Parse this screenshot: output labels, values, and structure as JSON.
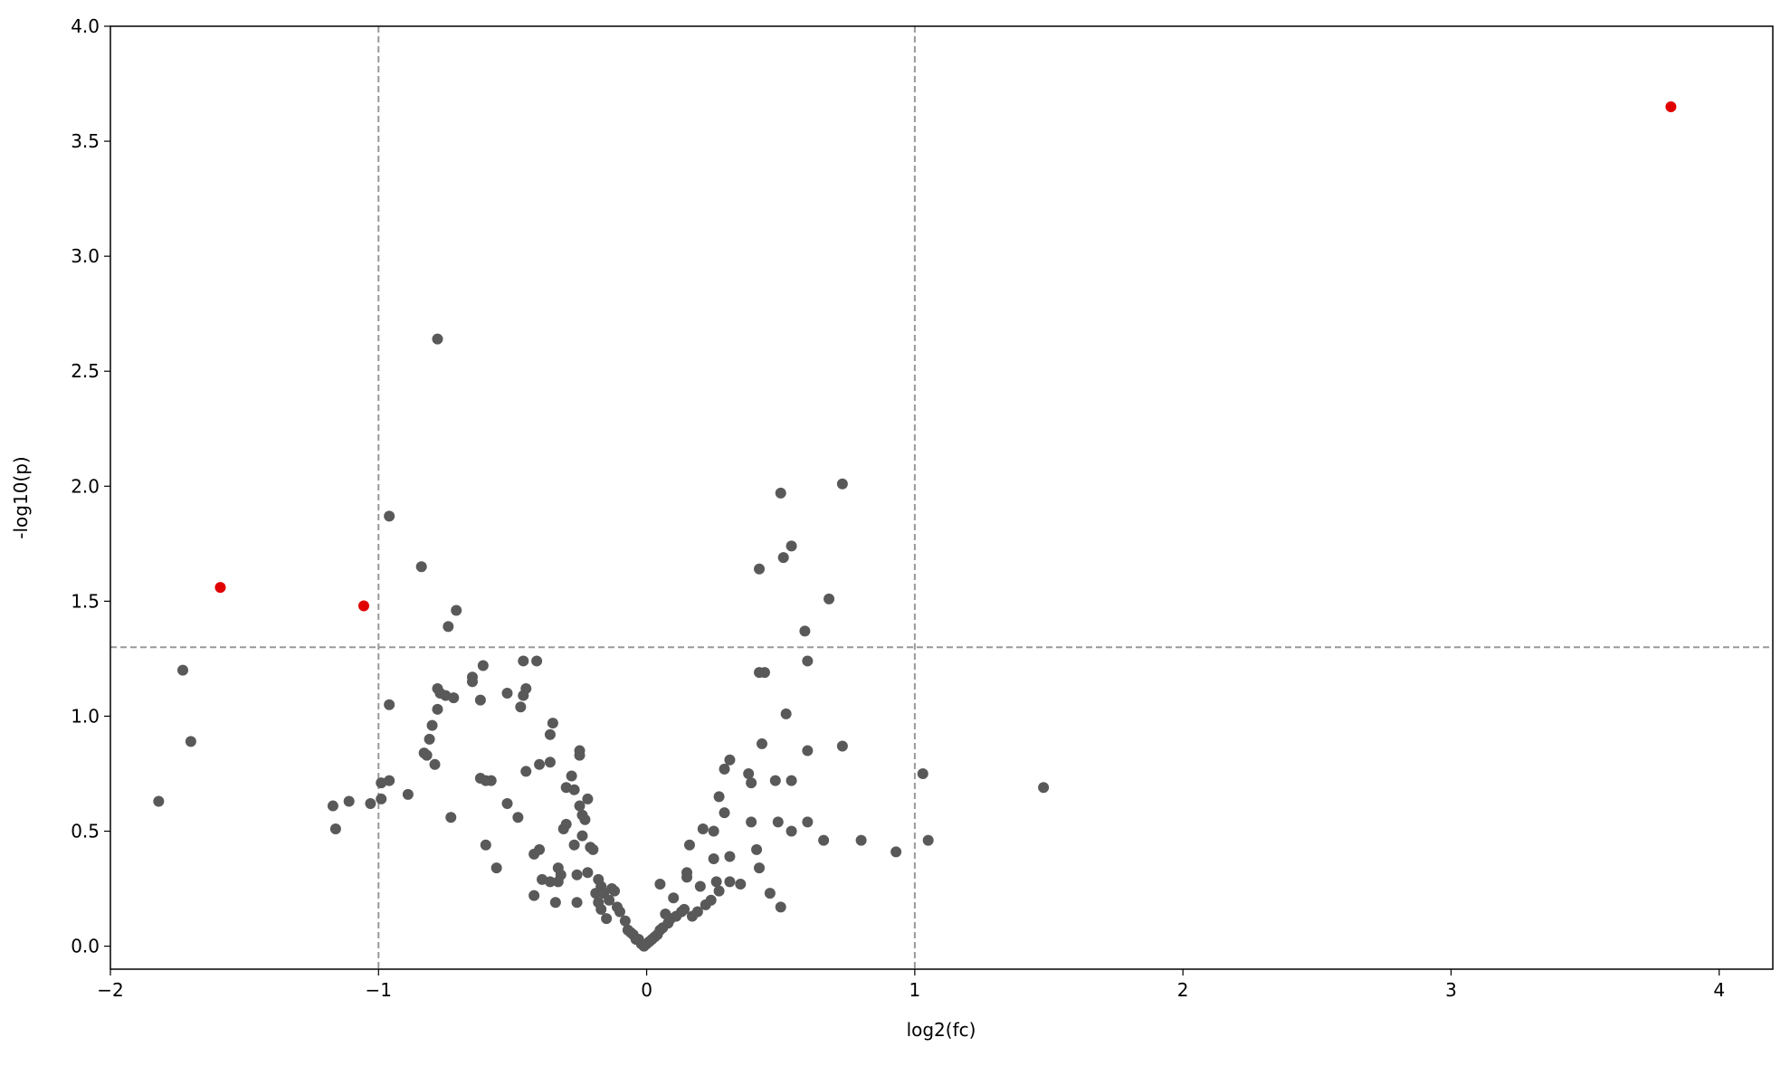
{
  "chart_data": {
    "type": "scatter",
    "xlabel": "log2(fc)",
    "ylabel": "-log10(p)",
    "xlim": [
      -2.0,
      4.2
    ],
    "ylim": [
      -0.1,
      4.0
    ],
    "xticks": [
      {
        "value": -2,
        "label": "−2"
      },
      {
        "value": -1,
        "label": "−1"
      },
      0,
      1,
      2,
      3,
      4
    ],
    "yticks": [
      {
        "value": 0,
        "label": "0.0"
      },
      {
        "value": 0.5,
        "label": "0.5"
      },
      {
        "value": 1,
        "label": "1.0"
      },
      {
        "value": 1.5,
        "label": "1.5"
      },
      {
        "value": 2,
        "label": "2.0"
      },
      {
        "value": 2.5,
        "label": "2.5"
      },
      {
        "value": 3,
        "label": "3.0"
      },
      {
        "value": 3.5,
        "label": "3.5"
      },
      {
        "value": 4,
        "label": "4.0"
      }
    ],
    "thresholds": {
      "x": [
        -1,
        1
      ],
      "y": 1.3,
      "color": "#999999"
    },
    "series": [
      {
        "color": "#595959",
        "x": [
          -1.73,
          -1.7,
          -1.82,
          -1.17,
          -1.16,
          -1.11,
          -1.03,
          -0.99,
          -0.99,
          -0.96,
          -0.96,
          -0.96,
          -0.89,
          -0.84,
          -0.78,
          -0.74,
          -0.71,
          -0.78,
          -0.77,
          -0.75,
          -0.72,
          -0.78,
          -0.8,
          -0.81,
          -0.83,
          -0.82,
          -0.79,
          -0.73,
          -0.65,
          -0.65,
          -0.61,
          -0.62,
          -0.62,
          -0.6,
          -0.58,
          -0.6,
          -0.56,
          -0.52,
          -0.52,
          -0.48,
          -0.47,
          -0.46,
          -0.45,
          -0.46,
          -0.41,
          -0.45,
          -0.4,
          -0.42,
          -0.4,
          -0.42,
          -0.39,
          -0.36,
          -0.35,
          -0.36,
          -0.36,
          -0.34,
          -0.33,
          -0.32,
          -0.33,
          -0.31,
          -0.3,
          -0.3,
          -0.28,
          -0.27,
          -0.27,
          -0.26,
          -0.26,
          -0.25,
          -0.25,
          -0.25,
          -0.24,
          -0.23,
          -0.22,
          -0.24,
          -0.22,
          -0.21,
          -0.2,
          -0.19,
          -0.18,
          -0.18,
          -0.17,
          -0.17,
          -0.16,
          -0.15,
          -0.14,
          -0.13,
          -0.12,
          -0.11,
          -0.1,
          -0.08,
          -0.07,
          -0.06,
          -0.05,
          -0.04,
          -0.03,
          -0.02,
          -0.01,
          0.0,
          0.01,
          0.02,
          0.03,
          0.04,
          0.05,
          0.06,
          0.05,
          0.07,
          0.08,
          0.09,
          0.1,
          0.11,
          0.13,
          0.14,
          0.15,
          0.15,
          0.16,
          0.17,
          0.19,
          0.2,
          0.21,
          0.22,
          0.24,
          0.25,
          0.25,
          0.26,
          0.27,
          0.27,
          0.29,
          0.29,
          0.31,
          0.31,
          0.31,
          0.35,
          0.38,
          0.39,
          0.39,
          0.41,
          0.42,
          0.42,
          0.44,
          0.43,
          0.42,
          0.46,
          0.48,
          0.5,
          0.51,
          0.54,
          0.49,
          0.5,
          0.52,
          0.54,
          0.54,
          0.59,
          0.6,
          0.6,
          0.6,
          0.66,
          0.68,
          0.73,
          0.73,
          0.8,
          0.93,
          1.03,
          1.05,
          1.48
        ],
        "values": [
          1.2,
          0.89,
          0.63,
          0.61,
          0.51,
          0.63,
          0.62,
          0.71,
          0.64,
          0.72,
          1.87,
          1.05,
          0.66,
          1.65,
          2.64,
          1.39,
          1.46,
          1.12,
          1.1,
          1.09,
          1.08,
          1.03,
          0.96,
          0.9,
          0.84,
          0.83,
          0.79,
          0.56,
          1.15,
          1.17,
          1.22,
          1.07,
          0.73,
          0.72,
          0.72,
          0.44,
          0.34,
          1.1,
          0.62,
          0.56,
          1.04,
          1.09,
          1.12,
          1.24,
          1.24,
          0.76,
          0.79,
          0.4,
          0.42,
          0.22,
          0.29,
          0.92,
          0.97,
          0.8,
          0.28,
          0.19,
          0.34,
          0.31,
          0.28,
          0.51,
          0.69,
          0.53,
          0.74,
          0.68,
          0.44,
          0.31,
          0.19,
          0.85,
          0.83,
          0.61,
          0.57,
          0.55,
          0.64,
          0.48,
          0.32,
          0.43,
          0.42,
          0.23,
          0.19,
          0.29,
          0.26,
          0.16,
          0.23,
          0.12,
          0.2,
          0.25,
          0.24,
          0.17,
          0.15,
          0.11,
          0.07,
          0.06,
          0.05,
          0.03,
          0.03,
          0.01,
          0.0,
          0.01,
          0.02,
          0.03,
          0.04,
          0.05,
          0.07,
          0.08,
          0.27,
          0.14,
          0.1,
          0.12,
          0.21,
          0.13,
          0.15,
          0.16,
          0.3,
          0.32,
          0.44,
          0.13,
          0.15,
          0.26,
          0.51,
          0.18,
          0.2,
          0.38,
          0.5,
          0.28,
          0.65,
          0.24,
          0.77,
          0.58,
          0.81,
          0.39,
          0.28,
          0.27,
          0.75,
          0.71,
          0.54,
          0.42,
          1.64,
          1.19,
          1.19,
          0.88,
          0.34,
          0.23,
          0.72,
          1.97,
          1.69,
          1.74,
          0.54,
          0.17,
          1.01,
          0.5,
          0.72,
          1.37,
          1.24,
          0.85,
          0.54,
          0.46,
          1.51,
          2.01,
          0.87,
          0.46,
          0.41,
          0.75,
          0.46,
          0.69
        ]
      },
      {
        "color": "#e00000",
        "x": [
          -1.59,
          -1.055,
          3.82
        ],
        "values": [
          1.56,
          1.48,
          3.65
        ]
      }
    ]
  }
}
